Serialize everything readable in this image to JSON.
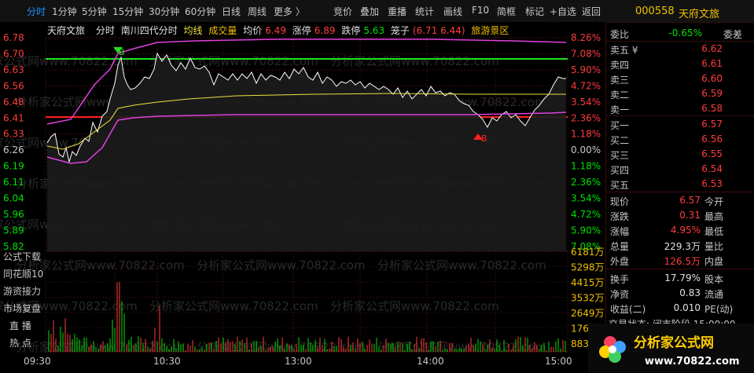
{
  "toolbar": {
    "tabs": [
      "分时",
      "1分钟",
      "5分钟",
      "15分钟",
      "30分钟",
      "60分钟",
      "日线",
      "周线",
      "更多 〉"
    ],
    "active_tab": "分时",
    "right_buttons": [
      "竞价",
      "叠加",
      "重播",
      "统计",
      "画线",
      "F10",
      "简框",
      "标记",
      "+自选",
      "返回"
    ]
  },
  "symbol": {
    "code": "000558",
    "name": "天府文旅"
  },
  "header": {
    "stock": "天府文旅",
    "mode": "分时",
    "index_name": "南川四代分时",
    "avg_label": "均线",
    "vol_label": "成交量",
    "avg_price_label": "均价",
    "avg_price": "6.49",
    "limit_up_label": "涨停",
    "limit_up": "6.89",
    "limit_down_label": "跌停",
    "limit_down": "5.63",
    "cage_label": "笼子",
    "cage_value": "(6.71 6.44)",
    "sector": "旅游景区"
  },
  "price_axis": [
    "6.78",
    "6.70",
    "6.63",
    "6.56",
    "6.48",
    "6.41",
    "6.33",
    "6.26",
    "6.19",
    "6.11",
    "6.04",
    "5.96",
    "5.89",
    "5.82"
  ],
  "pct_axis": [
    "8.26%",
    "7.08%",
    "5.90%",
    "4.72%",
    "3.54%",
    "2.36%",
    "1.18%",
    "0.00%",
    "1.18%",
    "2.36%",
    "3.54%",
    "4.72%",
    "5.90%",
    "7.08%"
  ],
  "vol_axis": [
    "6181万",
    "5298万",
    "4415万",
    "3532万",
    "2649万",
    "1766万",
    "883"
  ],
  "time_axis": [
    "09:30",
    "10:30",
    "13:00",
    "14:00",
    "15:00"
  ],
  "left_menu": [
    "公式下载",
    "同花顺10",
    "游资接力",
    "市场复盘",
    "直  播",
    "热  点"
  ],
  "markers": {
    "b1": "B",
    "b2": "B"
  },
  "watermark": "分析家公式网www.70822.com",
  "orderbook": {
    "weibi_label": "委比",
    "weibi": "-0.65%",
    "weicha_label": "委差",
    "asks": [
      {
        "k": "卖五 ¥",
        "v": "6.62"
      },
      {
        "k": "卖四",
        "v": "6.61"
      },
      {
        "k": "卖三",
        "v": "6.60"
      },
      {
        "k": "卖二",
        "v": "6.59"
      },
      {
        "k": "卖一",
        "v": "6.58"
      }
    ],
    "bids": [
      {
        "k": "买一",
        "v": "6.57"
      },
      {
        "k": "买二",
        "v": "6.56"
      },
      {
        "k": "买三",
        "v": "6.55"
      },
      {
        "k": "买四",
        "v": "6.54"
      },
      {
        "k": "买五",
        "v": "6.53"
      }
    ]
  },
  "quote": [
    {
      "k": "现价",
      "v": "6.57",
      "k2": "今开",
      "c": "red"
    },
    {
      "k": "涨跌",
      "v": "0.31",
      "k2": "最高",
      "c": "red"
    },
    {
      "k": "涨幅",
      "v": "4.95%",
      "k2": "最低",
      "c": "red"
    },
    {
      "k": "总量",
      "v": "229.3万",
      "k2": "量比",
      "c": "white"
    },
    {
      "k": "外盘",
      "v": "126.5万",
      "k2": "内盘",
      "c": "red"
    },
    {
      "k": "换手",
      "v": "17.79%",
      "k2": "股本",
      "c": "white"
    },
    {
      "k": "净资",
      "v": "0.83",
      "k2": "流通",
      "c": "white"
    },
    {
      "k": "收益(二)",
      "v": "0.010",
      "k2": "PE(动)",
      "c": "white"
    }
  ],
  "trade_status": "交易状态: 闭市阶段 15:00:00",
  "logo": {
    "text": "分析家公式网",
    "url": "www.70822.com"
  },
  "colors": {
    "up": "#ff3c3c",
    "down": "#00e000",
    "accent": "#1e90ff",
    "avg": "#f0e040",
    "band": "#e040e0"
  }
}
